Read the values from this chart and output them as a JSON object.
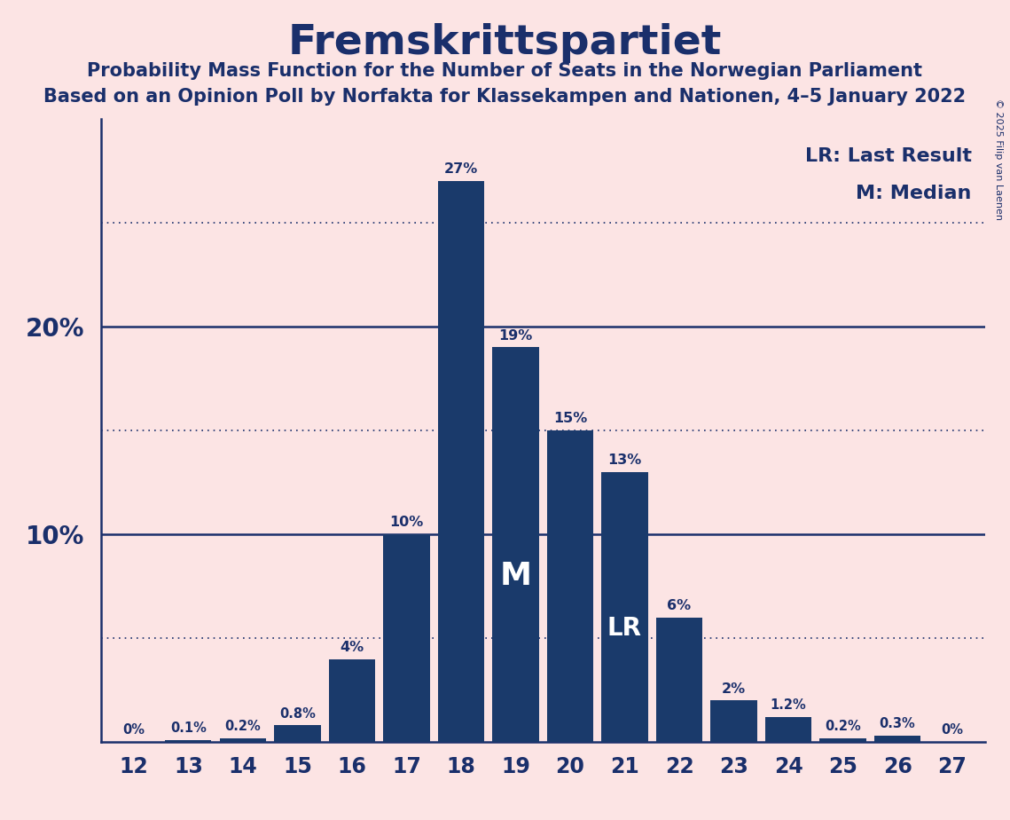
{
  "title": "Fremskrittspartiet",
  "subtitle1": "Probability Mass Function for the Number of Seats in the Norwegian Parliament",
  "subtitle2": "Based on an Opinion Poll by Norfakta for Klassekampen and Nationen, 4–5 January 2022",
  "copyright": "© 2025 Filip van Laenen",
  "legend_lr": "LR: Last Result",
  "legend_m": "M: Median",
  "seats": [
    12,
    13,
    14,
    15,
    16,
    17,
    18,
    19,
    20,
    21,
    22,
    23,
    24,
    25,
    26,
    27
  ],
  "probabilities": [
    0.0,
    0.1,
    0.2,
    0.8,
    4.0,
    10.0,
    27.0,
    19.0,
    15.0,
    13.0,
    6.0,
    2.0,
    1.2,
    0.2,
    0.3,
    0.0
  ],
  "bar_labels": [
    "0%",
    "0.1%",
    "0.2%",
    "0.8%",
    "4%",
    "10%",
    "27%",
    "19%",
    "15%",
    "13%",
    "6%",
    "2%",
    "1.2%",
    "0.2%",
    "0.3%",
    "0%"
  ],
  "bar_color": "#1a3a6b",
  "background_color": "#fce4e4",
  "text_color": "#1a2f6b",
  "median_seat": 19,
  "last_result_seat": 21,
  "dotted_yticks": [
    5,
    15,
    25
  ],
  "solid_yticks": [
    10,
    20
  ],
  "ylim": [
    0,
    30
  ]
}
